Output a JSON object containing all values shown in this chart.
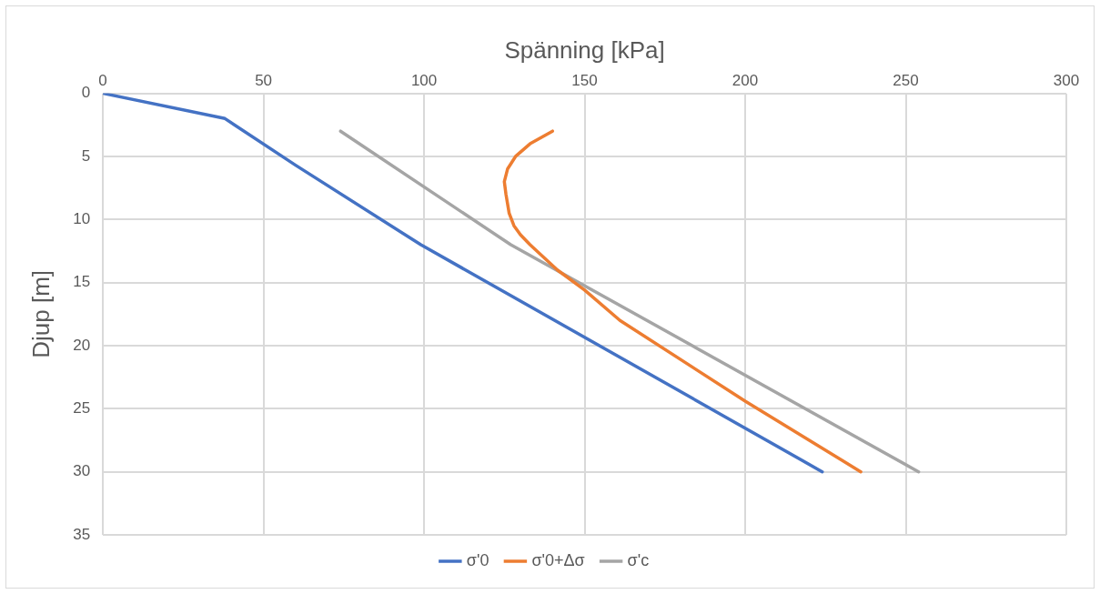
{
  "chart_data": {
    "type": "line",
    "xlabel": "Spänning [kPa]",
    "ylabel": "Djup [m]",
    "xlim": [
      0,
      300
    ],
    "xticks": [
      0,
      50,
      100,
      150,
      200,
      250,
      300
    ],
    "ylim": [
      35,
      0
    ],
    "yticks": [
      0,
      5,
      10,
      15,
      20,
      25,
      30,
      35
    ],
    "grid": true,
    "legend": "bottom",
    "marker": "none",
    "line_style": "solid",
    "series": [
      {
        "name": "σ'0",
        "color": "#4472c4",
        "x": [
          0,
          38,
          60,
          99,
          224
        ],
        "values": [
          0,
          2,
          5.7,
          12,
          30
        ]
      },
      {
        "name": "σ'0+Δσ",
        "color": "#ed7d31",
        "x": [
          140,
          133,
          128.5,
          126,
          125,
          125.5,
          126.5,
          128,
          130,
          133,
          141.5,
          150,
          161,
          200,
          236
        ],
        "values": [
          3,
          4,
          5,
          6,
          7,
          8,
          9.5,
          10.5,
          11.2,
          12,
          14,
          15.6,
          18,
          24.4,
          30
        ]
      },
      {
        "name": "σ'c",
        "color": "#a5a5a5",
        "x": [
          74,
          127,
          254
        ],
        "values": [
          3,
          12,
          30
        ]
      }
    ]
  }
}
